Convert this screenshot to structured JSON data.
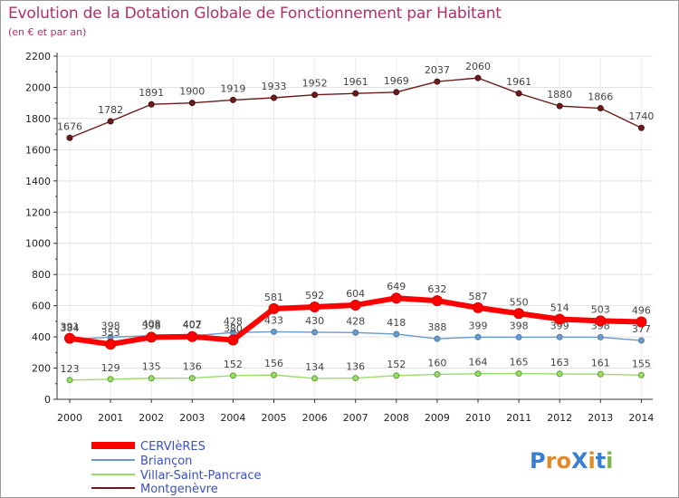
{
  "title": "Evolution de la Dotation Globale de Fonctionnement par Habitant",
  "subtitle": "(en € et par an)",
  "logo_text": "ProXiti",
  "chart_data": {
    "type": "line",
    "title": "Evolution de la Dotation Globale de Fonctionnement par Habitant",
    "ylabel": "(en € et par an)",
    "xlabel": "",
    "ylim": [
      0,
      2200
    ],
    "yticks": [
      "0",
      "200",
      "400",
      "600",
      "800",
      "1000",
      "1200",
      "1400",
      "1600",
      "1800",
      "2000",
      "2200"
    ],
    "categories": [
      "2000",
      "2001",
      "2002",
      "2003",
      "2004",
      "2005",
      "2006",
      "2007",
      "2008",
      "2009",
      "2010",
      "2011",
      "2012",
      "2013",
      "2014"
    ],
    "legend_position": "bottom-left",
    "series": [
      {
        "name": "CERVIèRES",
        "color": "#ff0000",
        "values": [
          391,
          353,
          398,
          402,
          380,
          581,
          592,
          604,
          649,
          632,
          587,
          550,
          514,
          503,
          496
        ]
      },
      {
        "name": "Briançon",
        "color": "#6a9bc9",
        "values": [
          384,
          398,
          408,
          407,
          428,
          433,
          430,
          428,
          418,
          388,
          399,
          398,
          399,
          398,
          377
        ]
      },
      {
        "name": "Villar-Saint-Pancrace",
        "color": "#99dd66",
        "values": [
          123,
          129,
          135,
          136,
          152,
          156,
          134,
          136,
          152,
          160,
          164,
          165,
          163,
          161,
          155
        ]
      },
      {
        "name": "Montgenèvre",
        "color": "#6b1b1b",
        "values": [
          1676,
          1782,
          1891,
          1900,
          1919,
          1933,
          1952,
          1961,
          1969,
          2037,
          2060,
          1961,
          1880,
          1866,
          1740
        ]
      }
    ]
  }
}
